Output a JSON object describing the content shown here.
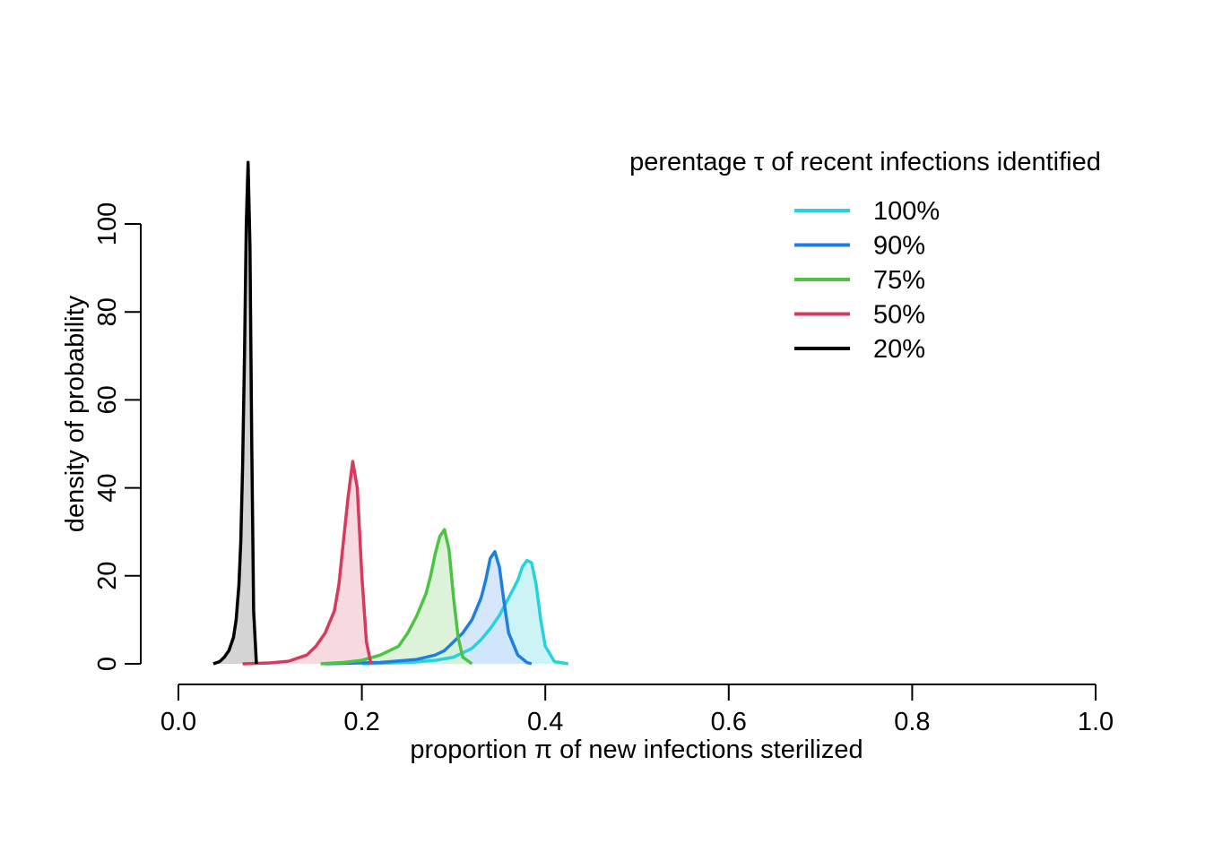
{
  "chart_data": {
    "type": "area",
    "xlabel": "proportion π of new infections sterilized",
    "ylabel": "density of probability",
    "xlim": [
      0,
      1
    ],
    "ylim": [
      0,
      115
    ],
    "x_ticks": [
      0.0,
      0.2,
      0.4,
      0.6,
      0.8,
      1.0
    ],
    "x_tick_labels": [
      "0.0",
      "0.2",
      "0.4",
      "0.6",
      "0.8",
      "1.0"
    ],
    "y_ticks": [
      0,
      20,
      40,
      60,
      80,
      100
    ],
    "y_tick_labels": [
      "0",
      "20",
      "40",
      "60",
      "80",
      "100"
    ],
    "grid": false,
    "legend": {
      "title": "perentage τ of recent infections identified",
      "position": "top-right",
      "entries": [
        "100%",
        "90%",
        "75%",
        "50%",
        "20%"
      ]
    },
    "series": [
      {
        "name": "100%",
        "color": "#28d2dc",
        "fill": "#c3f1f4",
        "x": [
          0.2,
          0.25,
          0.28,
          0.3,
          0.32,
          0.33,
          0.34,
          0.35,
          0.36,
          0.37,
          0.375,
          0.38,
          0.385,
          0.39,
          0.395,
          0.4,
          0.41,
          0.425
        ],
        "y": [
          0,
          0.3,
          0.8,
          1.5,
          3.5,
          5.5,
          8,
          11,
          15,
          19,
          22,
          23.5,
          23,
          18,
          10,
          4,
          0.5,
          0
        ]
      },
      {
        "name": "90%",
        "color": "#1e7fe0",
        "fill": "#cfe3fb",
        "x": [
          0.16,
          0.22,
          0.26,
          0.28,
          0.29,
          0.3,
          0.31,
          0.32,
          0.33,
          0.335,
          0.34,
          0.345,
          0.35,
          0.355,
          0.36,
          0.37,
          0.38,
          0.385
        ],
        "y": [
          0,
          0.3,
          1,
          2,
          3,
          5,
          7,
          10,
          15,
          19,
          24,
          25.5,
          22,
          14,
          7,
          2,
          0.3,
          0
        ]
      },
      {
        "name": "75%",
        "color": "#4dc342",
        "fill": "#d6f1d3",
        "x": [
          0.155,
          0.18,
          0.2,
          0.22,
          0.24,
          0.25,
          0.26,
          0.27,
          0.275,
          0.28,
          0.285,
          0.29,
          0.295,
          0.3,
          0.305,
          0.31,
          0.32
        ],
        "y": [
          0,
          0.3,
          0.8,
          2,
          4,
          7,
          11,
          16,
          20,
          25,
          29,
          30.5,
          26,
          15,
          6,
          1.5,
          0
        ]
      },
      {
        "name": "50%",
        "color": "#d63a5c",
        "fill": "#f6d2da",
        "x": [
          0.07,
          0.1,
          0.12,
          0.14,
          0.15,
          0.16,
          0.17,
          0.175,
          0.18,
          0.185,
          0.19,
          0.195,
          0.2,
          0.205,
          0.21
        ],
        "y": [
          0,
          0.2,
          0.6,
          2,
          4,
          7,
          12,
          18,
          28,
          38,
          46,
          40,
          20,
          5,
          0
        ]
      },
      {
        "name": "20%",
        "color": "#000000",
        "fill": "#cccccc",
        "x": [
          0.038,
          0.045,
          0.05,
          0.055,
          0.06,
          0.063,
          0.066,
          0.068,
          0.07,
          0.072,
          0.074,
          0.076,
          0.078,
          0.08,
          0.082,
          0.085
        ],
        "y": [
          0,
          0.5,
          1.5,
          3,
          6,
          10,
          18,
          28,
          45,
          70,
          100,
          114,
          95,
          50,
          12,
          0
        ]
      }
    ]
  }
}
